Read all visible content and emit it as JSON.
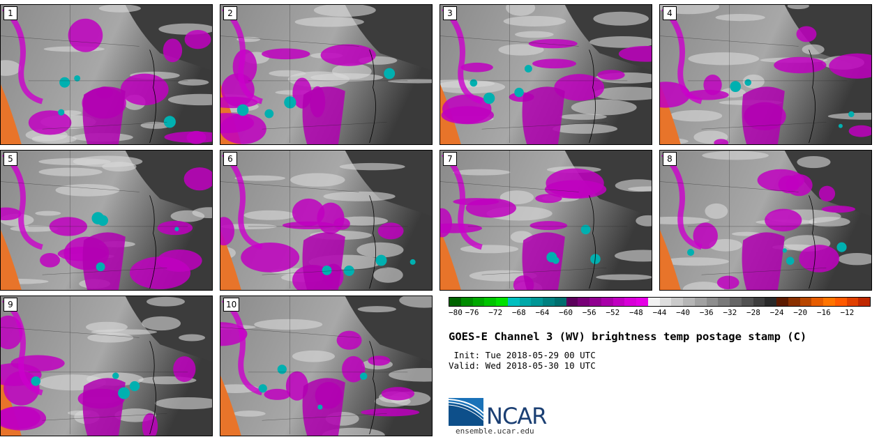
{
  "panels": [
    {
      "label": "1"
    },
    {
      "label": "2"
    },
    {
      "label": "3"
    },
    {
      "label": "4"
    },
    {
      "label": "5"
    },
    {
      "label": "6"
    },
    {
      "label": "7"
    },
    {
      "label": "8"
    },
    {
      "label": "9"
    },
    {
      "label": "10"
    }
  ],
  "colorbar": {
    "ticks": [
      "−80",
      "−76",
      "−72",
      "−68",
      "−64",
      "−60",
      "−56",
      "−52",
      "−48",
      "−44",
      "−40",
      "−36",
      "−32",
      "−28",
      "−24",
      "−20",
      "−16",
      "−12"
    ],
    "colors": [
      "#006400",
      "#008c00",
      "#00a800",
      "#00c400",
      "#00e000",
      "#00bfbf",
      "#00a8a8",
      "#009696",
      "#008080",
      "#006e6e",
      "#5c005c",
      "#780078",
      "#900090",
      "#a800a8",
      "#c000c0",
      "#d800d8",
      "#e600e6",
      "#f2f2f2",
      "#dedede",
      "#cacaca",
      "#b6b6b6",
      "#a2a2a2",
      "#8e8e8e",
      "#7a7a7a",
      "#666666",
      "#525252",
      "#3e3e3e",
      "#2a2a2a",
      "#5c1a00",
      "#8a3000",
      "#b84600",
      "#e65c00",
      "#ff7400",
      "#ff5a00",
      "#e04000",
      "#c02800"
    ]
  },
  "title": "GOES-E Channel 3 (WV) brightness temp postage stamp (C)",
  "init": " Init: Tue 2018-05-29 00 UTC",
  "valid": "Valid: Wed 2018-05-30 10 UTC",
  "logo": {
    "text": "NCAR",
    "color": "#1b3f73"
  },
  "site": "ensemble.ucar.edu"
}
